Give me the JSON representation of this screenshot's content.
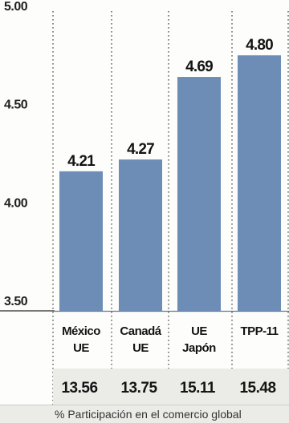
{
  "chart_data": {
    "type": "bar",
    "categories": [
      [
        "México",
        "UE"
      ],
      [
        "Canadá",
        "UE"
      ],
      [
        "UE",
        "Japón"
      ],
      [
        "TPP-11"
      ]
    ],
    "values": [
      4.21,
      4.27,
      4.69,
      4.8
    ],
    "value_labels": [
      "4.21",
      "4.27",
      "4.69",
      "4.80"
    ],
    "y_ticks": [
      "5.00",
      "4.50",
      "4.00",
      "3.50"
    ],
    "ylim": [
      3.5,
      5.0
    ],
    "grid": "vertical-dotted",
    "secondary_row": {
      "values": [
        "13.56",
        "13.75",
        "15.11",
        "15.48"
      ],
      "label": "% Participación en el comercio global"
    },
    "colors": {
      "bar": "#6d8db7",
      "band": "#ebebe7",
      "text": "#141414"
    }
  }
}
